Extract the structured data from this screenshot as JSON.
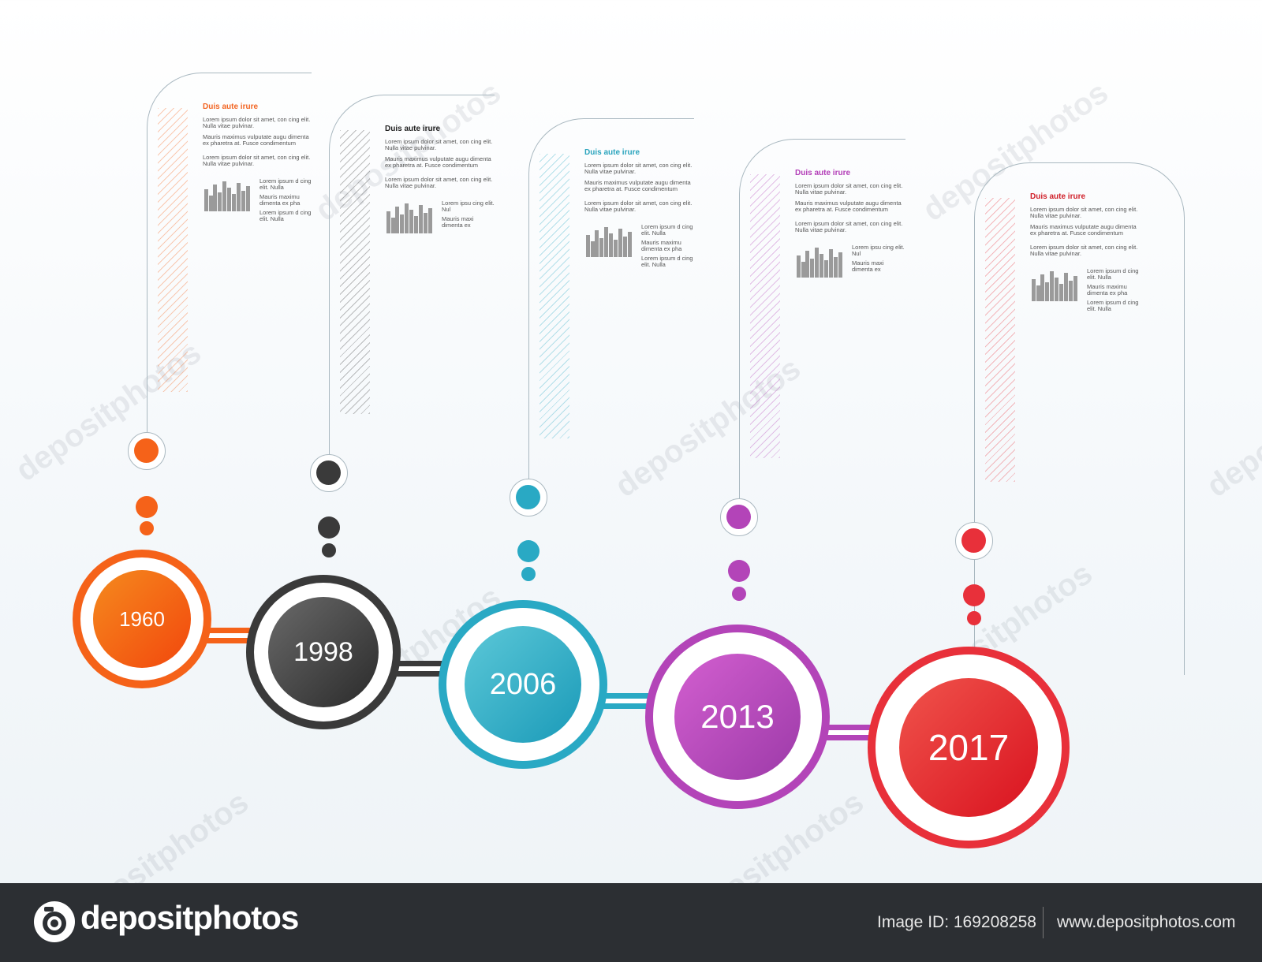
{
  "milestones": [
    {
      "year": "1960",
      "color": "#f56219",
      "core_gradient": [
        "#f58a1e",
        "#f2470d"
      ],
      "title": "Duis aute irure",
      "title_color": "#f26522",
      "paragraphs": [
        "Lorem ipsum dolor sit amet, con cing elit. Nulla vitae pulvinar.",
        "Mauris maximus vulputate augu dimenta ex pharetra at. Fusce condimentum vehicula.",
        "Lorem ipsum dolor sit amet, con cing elit. Nulla vitae pulvinar."
      ],
      "side_lines": [
        "Lorem ipsum d cing elit. Nulla",
        "Mauris maximu dimenta ex pha condimentum v",
        "Lorem ipsum d cing elit. Nulla"
      ]
    },
    {
      "year": "1998",
      "color": "#3a3a3a",
      "core_gradient": [
        "#6a6a6a",
        "#2a2a2a"
      ],
      "title": "Duis aute irure",
      "title_color": "#222222",
      "paragraphs": [
        "Lorem ipsum dolor sit amet, con cing elit. Nulla vitae pulvinar.",
        "Mauris maximus vulputate augu dimenta ex pharetra at. Fusce condimentum vehicula.",
        "Lorem ipsum dolor sit amet, con cing elit. Nulla vitae pulvinar."
      ],
      "side_lines": [
        "Lorem ipsu cing elit. Nul",
        "Mauris maxi dimenta ex condimentu"
      ]
    },
    {
      "year": "2006",
      "color": "#29a9c4",
      "core_gradient": [
        "#5cc8d8",
        "#1a9ab8"
      ],
      "title": "Duis aute irure",
      "title_color": "#2aa4bd",
      "paragraphs": [
        "Lorem ipsum dolor sit amet, con cing elit. Nulla vitae pulvinar.",
        "Mauris maximus vulputate augu dimenta ex pharetra at. Fusce condimentum vehicula.",
        "Lorem ipsum dolor sit amet, con cing elit. Nulla vitae pulvinar."
      ],
      "side_lines": [
        "Lorem ipsum d cing elit. Nulla",
        "Mauris maximu dimenta ex pha condimentum v",
        "Lorem ipsum d cing elit. Nulla"
      ]
    },
    {
      "year": "2013",
      "color": "#b344b8",
      "core_gradient": [
        "#d35fd0",
        "#9c3aa8"
      ],
      "title": "Duis aute irure",
      "title_color": "#b33fb8",
      "paragraphs": [
        "Lorem ipsum dolor sit amet, con cing elit. Nulla vitae pulvinar.",
        "Mauris maximus vulputate augu dimenta ex pharetra at. Fusce condimentum vehicula.",
        "Lorem ipsum dolor sit amet, con cing elit. Nulla vitae pulvinar."
      ],
      "side_lines": [
        "Lorem ipsu cing elit. Nul",
        "Mauris maxi dimenta ex condimentu"
      ]
    },
    {
      "year": "2017",
      "color": "#e8303a",
      "core_gradient": [
        "#f0544c",
        "#d9121f"
      ],
      "title": "Duis aute irure",
      "title_color": "#d0202a",
      "paragraphs": [
        "Lorem ipsum dolor sit amet, con cing elit. Nulla vitae pulvinar.",
        "Mauris maximus vulputate augu dimenta ex pharetra at. Fusce condimentum vehicula.",
        "Lorem ipsum dolor sit amet, con cing elit. Nulla vitae pulvinar."
      ],
      "side_lines": [
        "Lorem ipsum d cing elit. Nulla",
        "Mauris maximu dimenta ex pha condimentum v",
        "Lorem ipsum d cing elit. Nulla"
      ]
    }
  ],
  "watermark_text": "depositphotos",
  "footer": {
    "brand": "depositphotos",
    "image_id": "Image ID: 169208258",
    "url": "www.depositphotos.com"
  }
}
